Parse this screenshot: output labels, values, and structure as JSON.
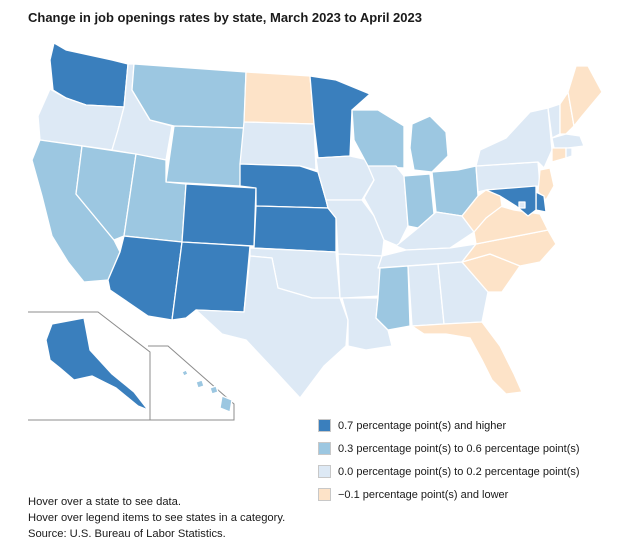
{
  "title": "Change in job openings rates by state, March 2023 to April 2023",
  "colors": {
    "high": "#3a7fbd",
    "mid": "#9cc7e1",
    "low": "#dde9f5",
    "neg": "#fde3c8"
  },
  "legend": [
    {
      "label": "0.7 percentage point(s) and higher",
      "category": "high"
    },
    {
      "label": "0.3 percentage point(s) to 0.6 percentage point(s)",
      "category": "mid"
    },
    {
      "label": "0.0 percentage point(s) to 0.2 percentage point(s)",
      "category": "low"
    },
    {
      "label": "−0.1 percentage point(s) and lower",
      "category": "neg"
    }
  ],
  "states": {
    "WA": "high",
    "OR": "low",
    "CA": "mid",
    "ID": "low",
    "NV": "mid",
    "MT": "mid",
    "WY": "mid",
    "UT": "mid",
    "AZ": "high",
    "CO": "high",
    "NM": "high",
    "ND": "neg",
    "SD": "low",
    "NE": "high",
    "KS": "high",
    "OK": "low",
    "TX": "low",
    "MN": "high",
    "IA": "low",
    "MO": "low",
    "AR": "low",
    "LA": "low",
    "WI": "mid",
    "IL": "low",
    "MI": "mid",
    "IN": "mid",
    "OH": "mid",
    "KY": "low",
    "TN": "low",
    "MS": "mid",
    "AL": "low",
    "GA": "low",
    "FL": "neg",
    "SC": "neg",
    "NC": "neg",
    "VA": "neg",
    "WV": "neg",
    "PA": "low",
    "NY": "low",
    "VT": "low",
    "NH": "neg",
    "ME": "neg",
    "MA": "low",
    "CT": "neg",
    "RI": "low",
    "NJ": "neg",
    "DE": "high",
    "MD": "high",
    "DC": "low",
    "AK": "high",
    "HI": "mid"
  },
  "notes": [
    "Hover over a state to see data.",
    "Hover over legend items to see states in a category.",
    "Source: U.S. Bureau of Labor Statistics."
  ]
}
